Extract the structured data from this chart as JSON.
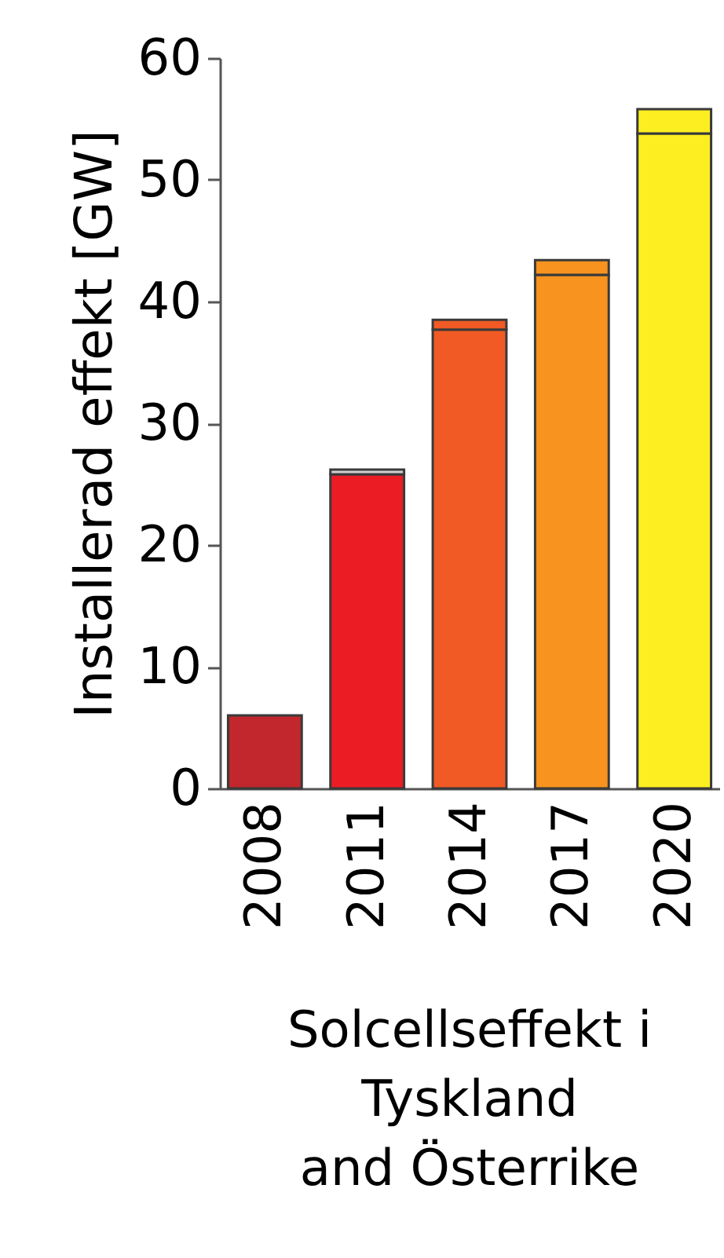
{
  "chart_data": {
    "type": "bar",
    "stacked": true,
    "title": "Solcellseffekt i\nTyskland\nand Österrike",
    "ylabel": "Installerad effekt [GW]",
    "categories": [
      "2008",
      "2011",
      "2014",
      "2017",
      "2020"
    ],
    "series": [
      {
        "colors": [
          "#c1272d",
          "#ec1c24",
          "#f15a24",
          "#f7931e",
          "#fcee21"
        ],
        "values": [
          6.0,
          25.8,
          37.7,
          42.2,
          53.8
        ]
      },
      {
        "colors": [
          null,
          "#d0d0d0",
          "#f15a24",
          "#f7931e",
          "#fcee21"
        ],
        "values": [
          null,
          0.4,
          0.8,
          1.2,
          2.0
        ]
      }
    ],
    "ylim": [
      0,
      60
    ],
    "yticks": [
      0,
      10,
      20,
      30,
      40,
      50,
      60
    ]
  }
}
